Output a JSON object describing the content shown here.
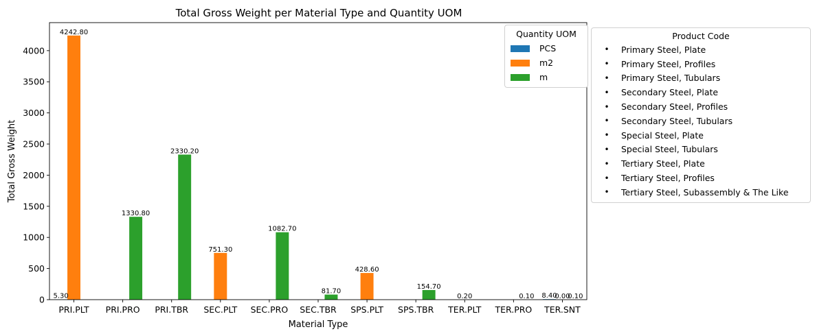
{
  "chart_data": {
    "type": "bar",
    "title": "Total Gross Weight per Material Type and Quantity UOM",
    "xlabel": "Material Type",
    "ylabel": "Total Gross Weight",
    "ylim": [
      0,
      4450
    ],
    "yticks": [
      0,
      500,
      1000,
      1500,
      2000,
      2500,
      3000,
      3500,
      4000
    ],
    "categories": [
      "PRI.PLT",
      "PRI.PRO",
      "PRI.TBR",
      "SEC.PLT",
      "SEC.PRO",
      "SEC.TBR",
      "SPS.PLT",
      "SPS.TBR",
      "TER.PLT",
      "TER.PRO",
      "TER.SNT"
    ],
    "legend_title": "Quantity UOM",
    "legend_position": "upper-right",
    "series": [
      {
        "name": "PCS",
        "color": "#1f77b4",
        "values": [
          5.3,
          null,
          null,
          null,
          null,
          null,
          null,
          null,
          null,
          null,
          8.4
        ]
      },
      {
        "name": "m2",
        "color": "#ff7f0e",
        "values": [
          4242.8,
          null,
          null,
          751.3,
          null,
          null,
          428.6,
          null,
          0.2,
          null,
          0.0
        ]
      },
      {
        "name": "m",
        "color": "#2ca02c",
        "values": [
          null,
          1330.8,
          2330.2,
          null,
          1082.7,
          81.7,
          null,
          154.7,
          null,
          0.1,
          0.1
        ]
      }
    ],
    "data_labels": [
      {
        "category": "PRI.PLT",
        "series": "PCS",
        "text": "5.30"
      },
      {
        "category": "PRI.PLT",
        "series": "m2",
        "text": "4242.80"
      },
      {
        "category": "PRI.PRO",
        "series": "m",
        "text": "1330.80"
      },
      {
        "category": "PRI.TBR",
        "series": "m",
        "text": "2330.20"
      },
      {
        "category": "SEC.PLT",
        "series": "m2",
        "text": "751.30"
      },
      {
        "category": "SEC.PRO",
        "series": "m",
        "text": "1082.70"
      },
      {
        "category": "SEC.TBR",
        "series": "m",
        "text": "81.70"
      },
      {
        "category": "SPS.PLT",
        "series": "m2",
        "text": "428.60"
      },
      {
        "category": "SPS.TBR",
        "series": "m",
        "text": "154.70"
      },
      {
        "category": "TER.PLT",
        "series": "m2",
        "text": "0.20"
      },
      {
        "category": "TER.PRO",
        "series": "m",
        "text": "0.10"
      },
      {
        "category": "TER.SNT",
        "series": "PCS",
        "text": "8.40"
      },
      {
        "category": "TER.SNT",
        "series": "m2",
        "text": "0.00"
      },
      {
        "category": "TER.SNT",
        "series": "m",
        "text": "0.10"
      }
    ]
  },
  "product_legend": {
    "title": "Product Code",
    "bullet": "•",
    "items": [
      "Primary Steel, Plate",
      "Primary Steel, Profiles",
      "Primary Steel, Tubulars",
      "Secondary Steel, Plate",
      "Secondary Steel, Profiles",
      "Secondary Steel, Tubulars",
      "Special Steel, Plate",
      "Special Steel, Tubulars",
      "Tertiary Steel, Plate",
      "Tertiary Steel, Profiles",
      "Tertiary Steel, Subassembly & The Like"
    ]
  }
}
